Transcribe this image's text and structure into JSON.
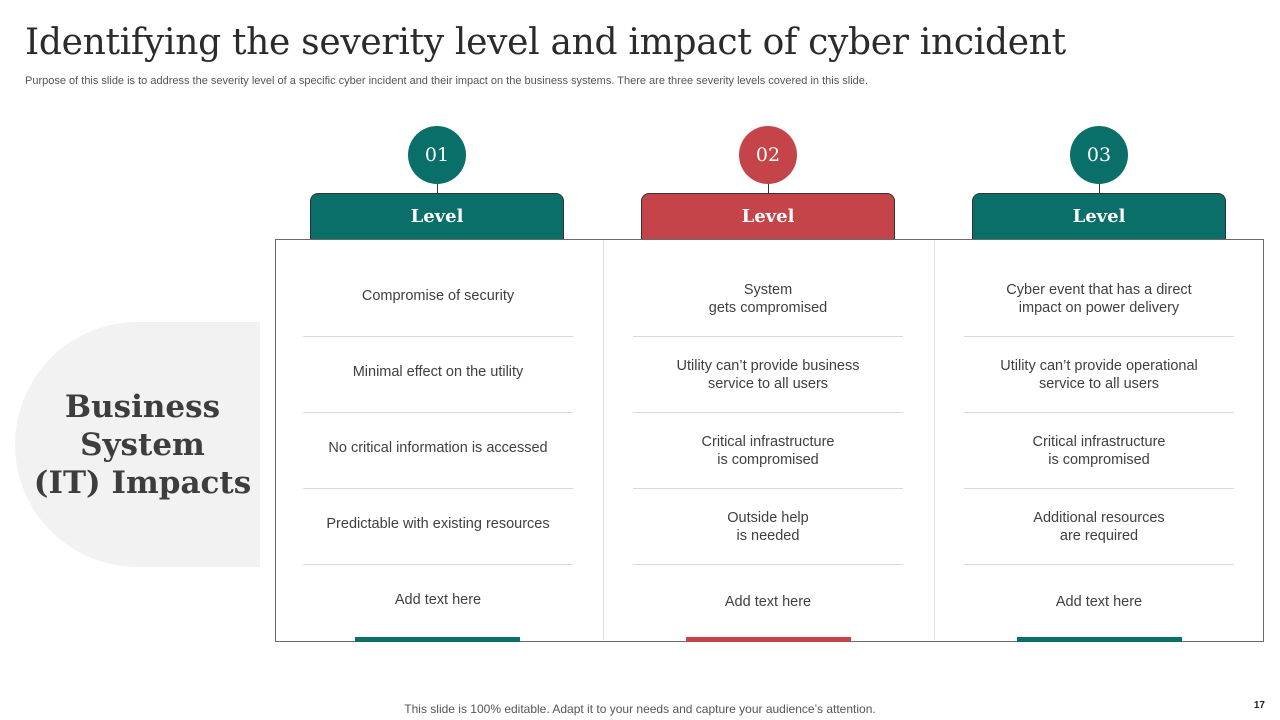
{
  "slide": {
    "title": "Identifying the severity level and impact of cyber incident",
    "subtitle": "Purpose of this slide is to address the severity level of a specific cyber incident and their impact on the business systems. There are three severity levels covered in this slide.",
    "side_label": "Business\nSystem\n(IT) Impacts",
    "footer": "This slide is 100% editable. Adapt it to your needs and capture your audience’s attention.",
    "page_number": "17"
  },
  "colors": {
    "teal": "#0b6f69",
    "red": "#c5444a",
    "panel": "#f2f2f2"
  },
  "levels": [
    {
      "number": "01",
      "label": "Level",
      "color": "teal",
      "items": [
        "Compromise of security",
        "Minimal effect on the utility",
        "No critical information is accessed",
        "Predictable with existing resources",
        "Add text here"
      ]
    },
    {
      "number": "02",
      "label": "Level",
      "color": "red",
      "items": [
        "System\ngets compromised",
        "Utility can’t provide business\nservice to all users",
        "Critical infrastructure\nis compromised",
        "Outside help\nis needed",
        "Add text here"
      ]
    },
    {
      "number": "03",
      "label": "Level",
      "color": "teal",
      "items": [
        "Cyber event that has a direct\nimpact on power delivery",
        "Utility can’t provide operational\nservice to all users",
        "Critical infrastructure\nis compromised",
        "Additional resources\nare required",
        "Add text here"
      ]
    }
  ]
}
